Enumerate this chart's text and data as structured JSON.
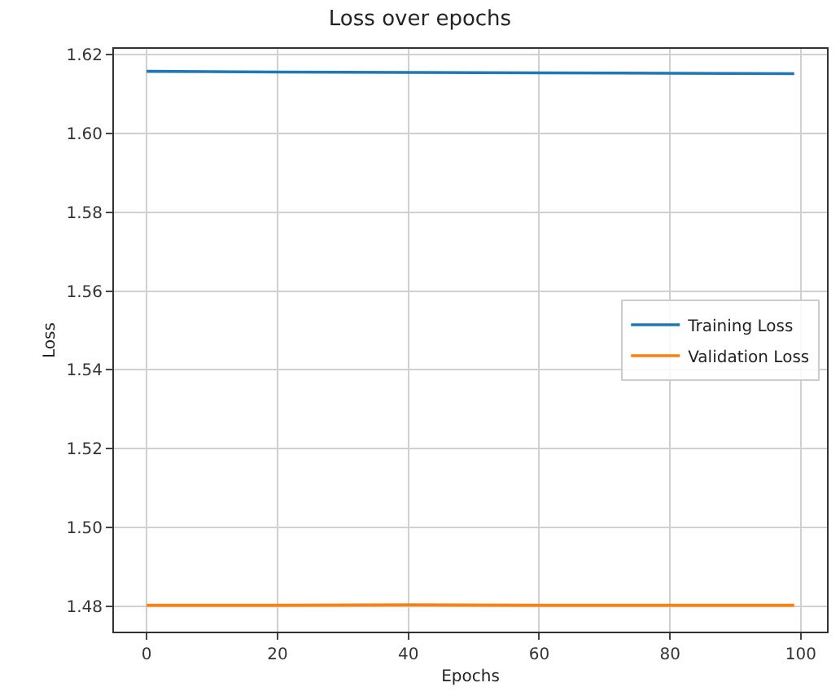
{
  "chart_data": {
    "type": "line",
    "title": "Loss over epochs",
    "xlabel": "Epochs",
    "ylabel": "Loss",
    "x": [
      0,
      20,
      40,
      60,
      80,
      99
    ],
    "series": [
      {
        "name": "Training Loss",
        "color": "#1f77b4",
        "values": [
          1.6158,
          1.6156,
          1.6155,
          1.6154,
          1.6153,
          1.6152
        ]
      },
      {
        "name": "Validation Loss",
        "color": "#ff7f0e",
        "values": [
          1.4802,
          1.4802,
          1.4803,
          1.4802,
          1.4802,
          1.4802
        ]
      }
    ],
    "xlim": [
      -5,
      104
    ],
    "xticks": [
      0,
      20,
      40,
      60,
      80,
      100
    ],
    "ylim": [
      1.4735,
      1.6215
    ],
    "yticks": [
      {
        "value": 1.48,
        "label": "1.48"
      },
      {
        "value": 1.5,
        "label": "1.50"
      },
      {
        "value": 1.52,
        "label": "1.52"
      },
      {
        "value": 1.54,
        "label": "1.54"
      },
      {
        "value": 1.56,
        "label": "1.56"
      },
      {
        "value": 1.58,
        "label": "1.58"
      },
      {
        "value": 1.6,
        "label": "1.60"
      },
      {
        "value": 1.62,
        "label": "1.62"
      }
    ],
    "grid": true,
    "legend": "right",
    "marker": "none",
    "line_style": "solid"
  }
}
